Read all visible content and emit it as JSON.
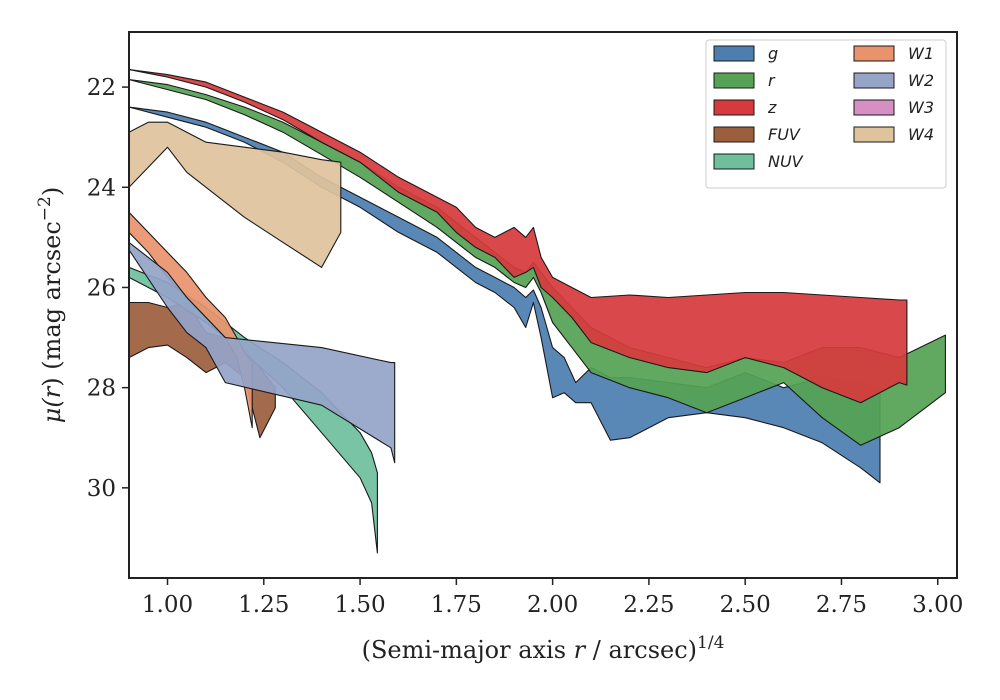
{
  "chart_data": {
    "type": "area",
    "xlabel_main": "(Semi-major axis ",
    "xlabel_var": "r",
    "xlabel_rest": " / arcsec)",
    "xlabel_sup": "1/4",
    "ylabel_pre": "μ(",
    "ylabel_var": "r",
    "ylabel_post": ") (mag arcsec",
    "ylabel_sup": "−2",
    "ylabel_close": ")",
    "xlim": [
      0.9,
      3.05
    ],
    "ylim": [
      31.8,
      20.9
    ],
    "y_inverted": true,
    "xticks": [
      1.0,
      1.25,
      1.5,
      1.75,
      2.0,
      2.25,
      2.5,
      2.75,
      3.0
    ],
    "xtick_labels": [
      "1.00",
      "1.25",
      "1.50",
      "1.75",
      "2.00",
      "2.25",
      "2.50",
      "2.75",
      "3.00"
    ],
    "yticks": [
      22,
      24,
      26,
      28,
      30
    ],
    "ytick_labels": [
      "22",
      "24",
      "26",
      "28",
      "30"
    ],
    "legend_position": "top-right",
    "grid": false,
    "series": [
      {
        "name": "g",
        "color": "#4c7eb0",
        "x": [
          0.9,
          1.0,
          1.1,
          1.2,
          1.3,
          1.4,
          1.5,
          1.6,
          1.7,
          1.75,
          1.8,
          1.85,
          1.9,
          1.93,
          1.95,
          1.97,
          2.0,
          2.03,
          2.06,
          2.1,
          2.15,
          2.2,
          2.3,
          2.4,
          2.5,
          2.6,
          2.7,
          2.8,
          2.85
        ],
        "y_lo": [
          22.4,
          22.5,
          22.7,
          23.0,
          23.3,
          23.8,
          24.2,
          24.6,
          25.0,
          25.3,
          25.6,
          25.8,
          26.0,
          26.2,
          26.05,
          26.4,
          27.2,
          27.4,
          27.9,
          27.6,
          27.8,
          27.8,
          27.9,
          28.0,
          27.7,
          28.0,
          27.8,
          27.9,
          28.0
        ],
        "y_hi": [
          22.4,
          22.6,
          22.8,
          23.1,
          23.5,
          24.0,
          24.4,
          24.9,
          25.3,
          25.6,
          25.9,
          26.1,
          26.4,
          26.8,
          26.3,
          27.0,
          28.2,
          28.1,
          28.3,
          28.3,
          29.05,
          29.0,
          28.6,
          28.5,
          28.6,
          28.8,
          29.1,
          29.6,
          29.9
        ]
      },
      {
        "name": "r",
        "color": "#55a254",
        "x": [
          0.9,
          1.0,
          1.1,
          1.2,
          1.3,
          1.4,
          1.5,
          1.6,
          1.7,
          1.75,
          1.8,
          1.85,
          1.9,
          1.93,
          1.95,
          1.97,
          2.0,
          2.05,
          2.1,
          2.2,
          2.3,
          2.4,
          2.5,
          2.6,
          2.7,
          2.8,
          2.9,
          3.02
        ],
        "y_lo": [
          21.85,
          21.95,
          22.15,
          22.4,
          22.7,
          23.1,
          23.5,
          24.0,
          24.4,
          24.7,
          25.0,
          25.3,
          25.6,
          25.7,
          25.5,
          25.7,
          26.0,
          26.4,
          26.8,
          27.2,
          27.4,
          27.6,
          27.4,
          27.5,
          27.2,
          27.2,
          27.4,
          26.95
        ],
        "y_hi": [
          21.85,
          22.05,
          22.25,
          22.55,
          22.9,
          23.35,
          23.8,
          24.3,
          24.8,
          25.1,
          25.4,
          25.6,
          25.9,
          26.0,
          25.8,
          26.1,
          26.7,
          27.2,
          27.7,
          28.0,
          28.2,
          28.5,
          28.2,
          27.9,
          28.6,
          29.15,
          28.8,
          28.1
        ]
      },
      {
        "name": "z",
        "color": "#d63a3c",
        "x": [
          0.9,
          1.0,
          1.1,
          1.2,
          1.3,
          1.4,
          1.5,
          1.6,
          1.7,
          1.75,
          1.8,
          1.85,
          1.9,
          1.93,
          1.95,
          1.97,
          2.0,
          2.05,
          2.1,
          2.2,
          2.3,
          2.4,
          2.5,
          2.6,
          2.7,
          2.8,
          2.9,
          2.92
        ],
        "y_lo": [
          21.65,
          21.75,
          21.9,
          22.2,
          22.5,
          22.9,
          23.3,
          23.8,
          24.2,
          24.4,
          24.8,
          25.0,
          24.8,
          25.0,
          24.8,
          25.4,
          25.8,
          26.0,
          26.2,
          26.15,
          26.2,
          26.15,
          26.1,
          26.1,
          26.15,
          26.2,
          26.25,
          26.25
        ],
        "y_hi": [
          21.65,
          21.8,
          22.0,
          22.3,
          22.65,
          23.1,
          23.5,
          24.1,
          24.5,
          24.9,
          25.2,
          25.4,
          25.8,
          25.7,
          25.6,
          26.0,
          26.2,
          26.6,
          27.1,
          27.4,
          27.6,
          27.7,
          27.4,
          27.6,
          28.0,
          28.3,
          27.9,
          27.95
        ]
      },
      {
        "name": "FUV",
        "color": "#9c5f3e",
        "x": [
          0.9,
          0.95,
          1.0,
          1.05,
          1.1,
          1.15,
          1.2,
          1.24,
          1.28
        ],
        "y_lo": [
          26.3,
          26.3,
          26.4,
          26.3,
          26.9,
          27.0,
          27.2,
          27.6,
          28.0
        ],
        "y_hi": [
          27.4,
          27.2,
          27.15,
          27.4,
          27.7,
          27.5,
          27.8,
          29.0,
          28.4
        ]
      },
      {
        "name": "NUV",
        "color": "#6fbf9d",
        "x": [
          0.9,
          1.0,
          1.1,
          1.2,
          1.3,
          1.4,
          1.5,
          1.53,
          1.545
        ],
        "y_lo": [
          25.6,
          25.9,
          26.4,
          27.0,
          27.5,
          28.1,
          28.9,
          29.3,
          29.7
        ],
        "y_hi": [
          25.8,
          26.2,
          26.7,
          27.3,
          28.0,
          28.9,
          29.8,
          30.3,
          31.3
        ]
      },
      {
        "name": "W1",
        "color": "#e9936d",
        "x": [
          0.9,
          0.95,
          1.0,
          1.05,
          1.1,
          1.15,
          1.18,
          1.2,
          1.22
        ],
        "y_lo": [
          24.5,
          24.9,
          25.3,
          25.7,
          26.2,
          26.6,
          27.0,
          27.3,
          27.5
        ],
        "y_hi": [
          24.9,
          25.3,
          25.8,
          26.2,
          26.6,
          27.0,
          27.4,
          28.0,
          28.8
        ]
      },
      {
        "name": "W2",
        "color": "#95a4c7",
        "x": [
          0.9,
          1.0,
          1.05,
          1.1,
          1.15,
          1.4,
          1.58,
          1.59
        ],
        "y_lo": [
          25.1,
          25.7,
          26.2,
          26.6,
          27.0,
          27.2,
          27.5,
          27.5
        ],
        "y_hi": [
          25.25,
          26.4,
          26.9,
          27.2,
          27.9,
          28.35,
          29.2,
          29.5
        ]
      },
      {
        "name": "W3",
        "color": "#d68fc2",
        "x": [],
        "y_lo": [],
        "y_hi": []
      },
      {
        "name": "W4",
        "color": "#dfc39c",
        "x": [
          0.9,
          0.95,
          1.0,
          1.05,
          1.1,
          1.2,
          1.3,
          1.4,
          1.45
        ],
        "y_lo": [
          22.9,
          22.7,
          22.7,
          22.9,
          23.1,
          23.2,
          23.3,
          23.45,
          23.5
        ],
        "y_hi": [
          24.0,
          23.6,
          23.2,
          23.7,
          24.0,
          24.6,
          25.1,
          25.6,
          24.9
        ]
      }
    ],
    "legend_columns": [
      [
        "g",
        "r",
        "z",
        "FUV",
        "NUV"
      ],
      [
        "W1",
        "W2",
        "W3",
        "W4"
      ]
    ]
  }
}
